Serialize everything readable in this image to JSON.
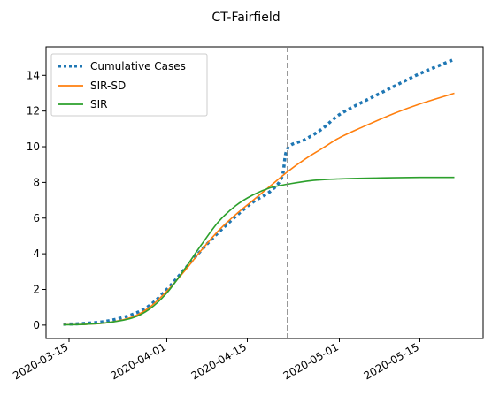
{
  "chart_data": {
    "type": "line",
    "title": "CT-Fairfield",
    "xlabel": "",
    "ylabel": "",
    "x_axis_type": "date",
    "xlim": [
      "2020-03-11",
      "2020-05-26"
    ],
    "ylim": [
      -0.75,
      15.6
    ],
    "x_ticks": [
      "2020-03-15",
      "2020-04-01",
      "2020-04-15",
      "2020-05-01",
      "2020-05-15"
    ],
    "y_ticks": [
      0,
      2,
      4,
      6,
      8,
      10,
      12,
      14
    ],
    "grid": false,
    "legend_position": "top-left",
    "vline": {
      "x": "2020-04-22",
      "style": "dashed",
      "color": "#7f7f7f"
    },
    "series": [
      {
        "name": "Cumulative Cases",
        "style": "dotted",
        "color": "#1f77b4",
        "points": [
          [
            "2020-03-14",
            0.05
          ],
          [
            "2020-03-18",
            0.1
          ],
          [
            "2020-03-22",
            0.25
          ],
          [
            "2020-03-26",
            0.6
          ],
          [
            "2020-03-29",
            1.1
          ],
          [
            "2020-04-01",
            2.0
          ],
          [
            "2020-04-04",
            3.1
          ],
          [
            "2020-04-07",
            4.2
          ],
          [
            "2020-04-10",
            5.2
          ],
          [
            "2020-04-13",
            6.1
          ],
          [
            "2020-04-16",
            6.9
          ],
          [
            "2020-04-19",
            7.5
          ],
          [
            "2020-04-21",
            8.3
          ],
          [
            "2020-04-22",
            9.9
          ],
          [
            "2020-04-25",
            10.4
          ],
          [
            "2020-04-28",
            11.0
          ],
          [
            "2020-05-01",
            11.8
          ],
          [
            "2020-05-05",
            12.5
          ],
          [
            "2020-05-10",
            13.3
          ],
          [
            "2020-05-15",
            14.1
          ],
          [
            "2020-05-21",
            14.9
          ]
        ]
      },
      {
        "name": "SIR-SD",
        "style": "solid",
        "color": "#ff7f0e",
        "points": [
          [
            "2020-03-14",
            0.03
          ],
          [
            "2020-03-18",
            0.05
          ],
          [
            "2020-03-22",
            0.15
          ],
          [
            "2020-03-26",
            0.45
          ],
          [
            "2020-03-29",
            1.0
          ],
          [
            "2020-04-01",
            1.9
          ],
          [
            "2020-04-04",
            3.0
          ],
          [
            "2020-04-07",
            4.2
          ],
          [
            "2020-04-10",
            5.3
          ],
          [
            "2020-04-13",
            6.2
          ],
          [
            "2020-04-16",
            7.0
          ],
          [
            "2020-04-19",
            7.8
          ],
          [
            "2020-04-22",
            8.6
          ],
          [
            "2020-04-25",
            9.3
          ],
          [
            "2020-04-28",
            9.9
          ],
          [
            "2020-05-01",
            10.5
          ],
          [
            "2020-05-05",
            11.1
          ],
          [
            "2020-05-10",
            11.8
          ],
          [
            "2020-05-15",
            12.4
          ],
          [
            "2020-05-21",
            13.0
          ]
        ]
      },
      {
        "name": "SIR",
        "style": "solid",
        "color": "#2ca02c",
        "points": [
          [
            "2020-03-14",
            0.02
          ],
          [
            "2020-03-18",
            0.05
          ],
          [
            "2020-03-22",
            0.15
          ],
          [
            "2020-03-26",
            0.4
          ],
          [
            "2020-03-29",
            0.9
          ],
          [
            "2020-04-01",
            1.8
          ],
          [
            "2020-04-04",
            3.1
          ],
          [
            "2020-04-07",
            4.5
          ],
          [
            "2020-04-10",
            5.8
          ],
          [
            "2020-04-13",
            6.7
          ],
          [
            "2020-04-16",
            7.3
          ],
          [
            "2020-04-19",
            7.7
          ],
          [
            "2020-04-22",
            7.9
          ],
          [
            "2020-04-26",
            8.1
          ],
          [
            "2020-05-01",
            8.2
          ],
          [
            "2020-05-08",
            8.25
          ],
          [
            "2020-05-15",
            8.28
          ],
          [
            "2020-05-21",
            8.28
          ]
        ]
      }
    ]
  }
}
